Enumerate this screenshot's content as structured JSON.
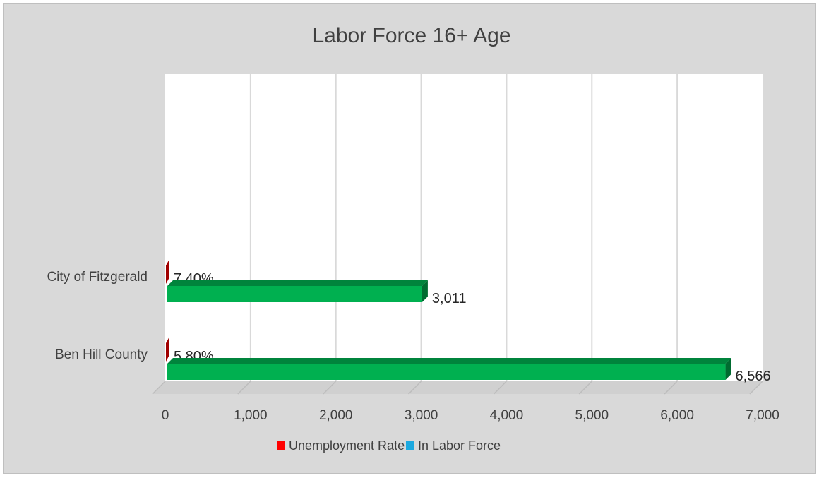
{
  "chart_data": {
    "type": "bar",
    "orientation": "horizontal",
    "title": "Labor Force 16+ Age",
    "categories": [
      "City of Fitzgerald",
      "Ben Hill County"
    ],
    "series": [
      {
        "name": "Unemployment Rate",
        "color": "#c00000",
        "values": [
          7.4,
          5.8
        ],
        "data_labels": [
          "7.40%",
          "5.80%"
        ]
      },
      {
        "name": "In Labor Force",
        "color": "#00b050",
        "values": [
          3011,
          6566
        ],
        "data_labels": [
          "3,011",
          "6,566"
        ]
      }
    ],
    "x_ticks": [
      "0",
      "1,000",
      "2,000",
      "3,000",
      "4,000",
      "5,000",
      "6,000",
      "7,000"
    ],
    "xlim": [
      0,
      7000
    ],
    "grid": true,
    "legend_position": "bottom",
    "legend": [
      {
        "name": "Unemployment Rate",
        "color": "#ff0000"
      },
      {
        "name": "In Labor Force",
        "color": "#1ca9e0"
      }
    ]
  }
}
